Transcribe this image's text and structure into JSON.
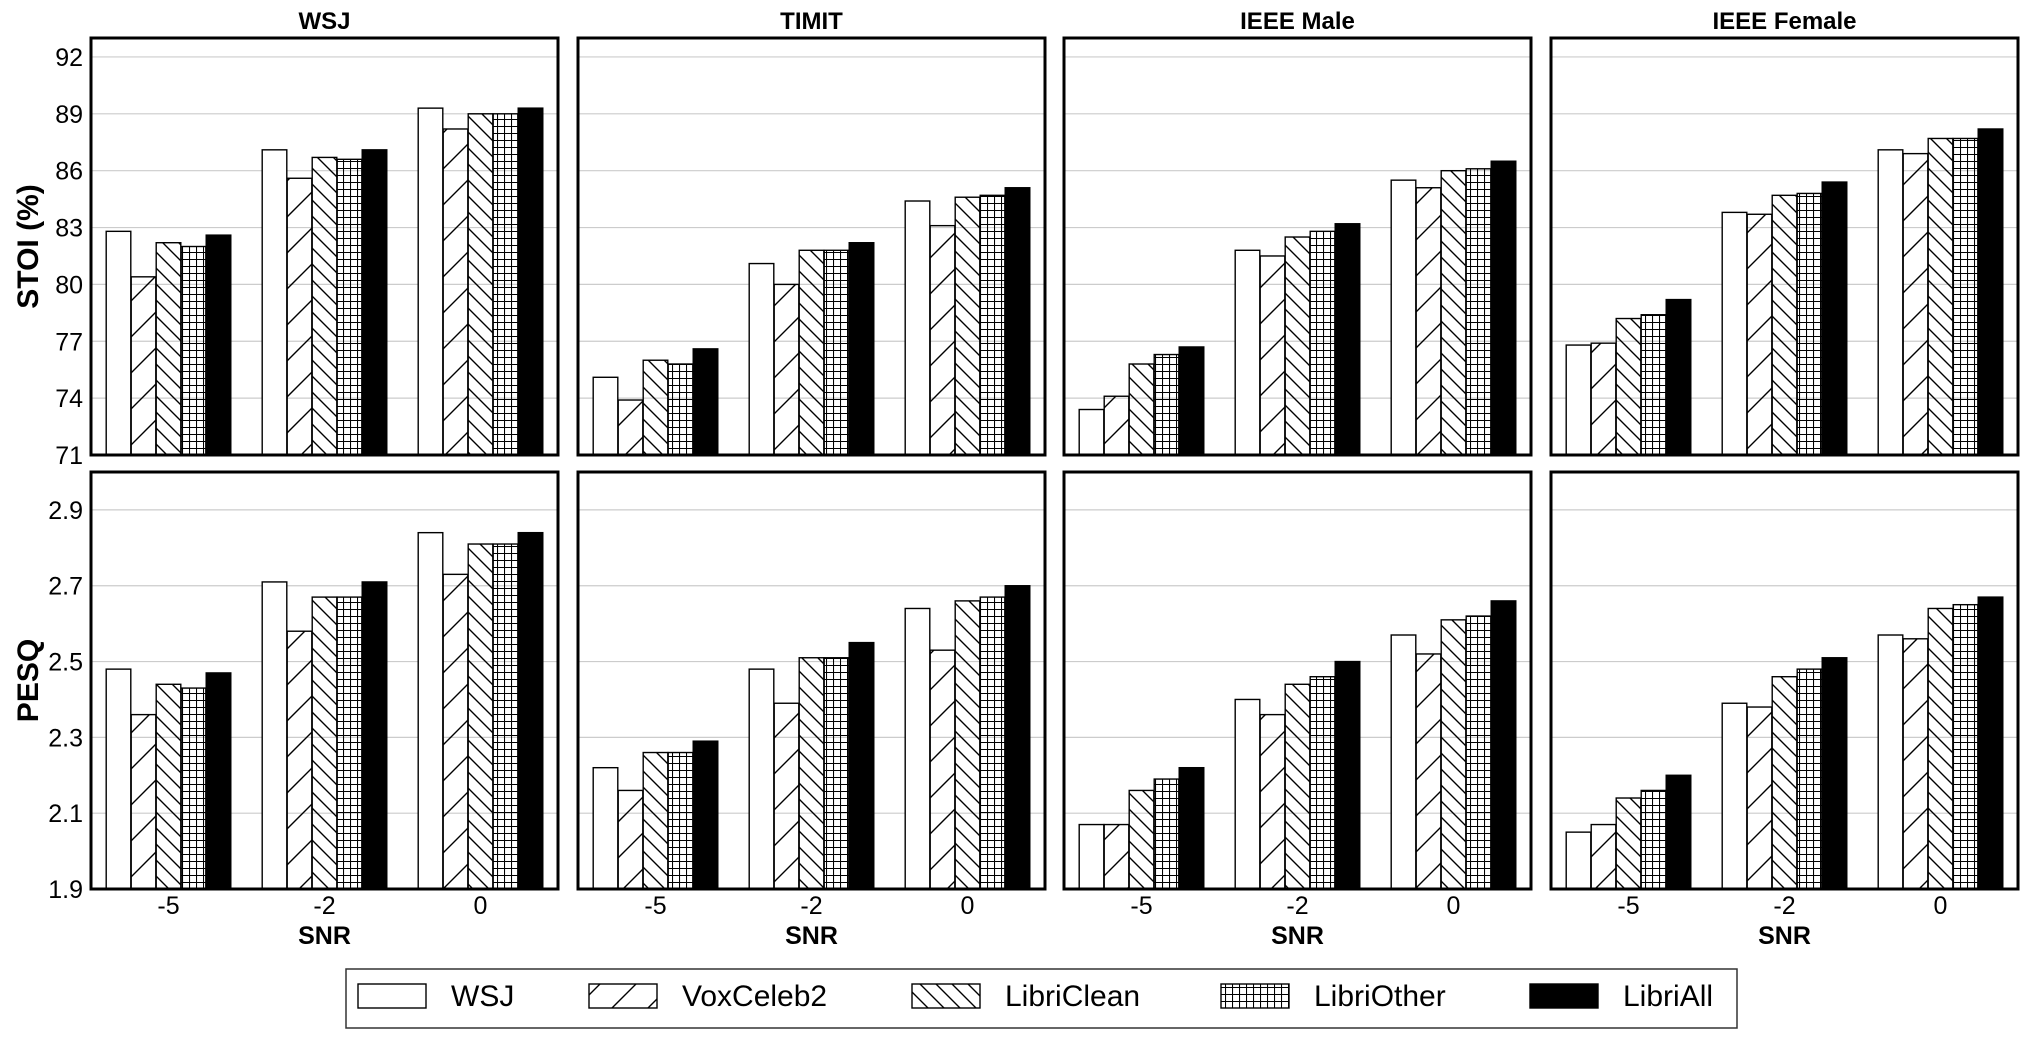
{
  "chart_data": {
    "type": "bar",
    "grid_layout": "2 rows x 4 columns",
    "columns": [
      "WSJ",
      "TIMIT",
      "IEEE Male",
      "IEEE Female"
    ],
    "xlabel": "SNR",
    "categories": [
      "-5",
      "-2",
      "0"
    ],
    "series_names": [
      "WSJ",
      "VoxCeleb2",
      "LibriClean",
      "LibriOther",
      "LibriAll"
    ],
    "series_patterns": [
      "empty",
      "forward-hatch",
      "back-hatch",
      "grid",
      "solid"
    ],
    "legend_placement": "bottom-center",
    "grid": "horizontal",
    "rows": [
      {
        "ylabel": "STOI (%)",
        "ylim": [
          71,
          93
        ],
        "yticks": [
          "71",
          "74",
          "77",
          "80",
          "83",
          "86",
          "89",
          "92"
        ],
        "panels": [
          {
            "title": "WSJ",
            "series": [
              {
                "name": "WSJ",
                "values": [
                  82.8,
                  87.1,
                  89.3
                ]
              },
              {
                "name": "VoxCeleb2",
                "values": [
                  80.4,
                  85.6,
                  88.2
                ]
              },
              {
                "name": "LibriClean",
                "values": [
                  82.2,
                  86.7,
                  89.0
                ]
              },
              {
                "name": "LibriOther",
                "values": [
                  82.0,
                  86.6,
                  89.0
                ]
              },
              {
                "name": "LibriAll",
                "values": [
                  82.6,
                  87.1,
                  89.3
                ]
              }
            ]
          },
          {
            "title": "TIMIT",
            "series": [
              {
                "name": "WSJ",
                "values": [
                  75.1,
                  81.1,
                  84.4
                ]
              },
              {
                "name": "VoxCeleb2",
                "values": [
                  73.9,
                  80.0,
                  83.1
                ]
              },
              {
                "name": "LibriClean",
                "values": [
                  76.0,
                  81.8,
                  84.6
                ]
              },
              {
                "name": "LibriOther",
                "values": [
                  75.8,
                  81.8,
                  84.7
                ]
              },
              {
                "name": "LibriAll",
                "values": [
                  76.6,
                  82.2,
                  85.1
                ]
              }
            ]
          },
          {
            "title": "IEEE Male",
            "series": [
              {
                "name": "WSJ",
                "values": [
                  73.4,
                  81.8,
                  85.5
                ]
              },
              {
                "name": "VoxCeleb2",
                "values": [
                  74.1,
                  81.5,
                  85.1
                ]
              },
              {
                "name": "LibriClean",
                "values": [
                  75.8,
                  82.5,
                  86.0
                ]
              },
              {
                "name": "LibriOther",
                "values": [
                  76.3,
                  82.8,
                  86.1
                ]
              },
              {
                "name": "LibriAll",
                "values": [
                  76.7,
                  83.2,
                  86.5
                ]
              }
            ]
          },
          {
            "title": "IEEE Female",
            "series": [
              {
                "name": "WSJ",
                "values": [
                  76.8,
                  83.8,
                  87.1
                ]
              },
              {
                "name": "VoxCeleb2",
                "values": [
                  76.9,
                  83.7,
                  86.9
                ]
              },
              {
                "name": "LibriClean",
                "values": [
                  78.2,
                  84.7,
                  87.7
                ]
              },
              {
                "name": "LibriOther",
                "values": [
                  78.4,
                  84.8,
                  87.7
                ]
              },
              {
                "name": "LibriAll",
                "values": [
                  79.2,
                  85.4,
                  88.2
                ]
              }
            ]
          }
        ]
      },
      {
        "ylabel": "PESQ",
        "ylim": [
          1.9,
          3.0
        ],
        "yticks": [
          "1.9",
          "2.1",
          "2.3",
          "2.5",
          "2.7",
          "2.9"
        ],
        "panels": [
          {
            "title": "WSJ",
            "series": [
              {
                "name": "WSJ",
                "values": [
                  2.48,
                  2.71,
                  2.84
                ]
              },
              {
                "name": "VoxCeleb2",
                "values": [
                  2.36,
                  2.58,
                  2.73
                ]
              },
              {
                "name": "LibriClean",
                "values": [
                  2.44,
                  2.67,
                  2.81
                ]
              },
              {
                "name": "LibriOther",
                "values": [
                  2.43,
                  2.67,
                  2.81
                ]
              },
              {
                "name": "LibriAll",
                "values": [
                  2.47,
                  2.71,
                  2.84
                ]
              }
            ]
          },
          {
            "title": "TIMIT",
            "series": [
              {
                "name": "WSJ",
                "values": [
                  2.22,
                  2.48,
                  2.64
                ]
              },
              {
                "name": "VoxCeleb2",
                "values": [
                  2.16,
                  2.39,
                  2.53
                ]
              },
              {
                "name": "LibriClean",
                "values": [
                  2.26,
                  2.51,
                  2.66
                ]
              },
              {
                "name": "LibriOther",
                "values": [
                  2.26,
                  2.51,
                  2.67
                ]
              },
              {
                "name": "LibriAll",
                "values": [
                  2.29,
                  2.55,
                  2.7
                ]
              }
            ]
          },
          {
            "title": "IEEE Male",
            "series": [
              {
                "name": "WSJ",
                "values": [
                  2.07,
                  2.4,
                  2.57
                ]
              },
              {
                "name": "VoxCeleb2",
                "values": [
                  2.07,
                  2.36,
                  2.52
                ]
              },
              {
                "name": "LibriClean",
                "values": [
                  2.16,
                  2.44,
                  2.61
                ]
              },
              {
                "name": "LibriOther",
                "values": [
                  2.19,
                  2.46,
                  2.62
                ]
              },
              {
                "name": "LibriAll",
                "values": [
                  2.22,
                  2.5,
                  2.66
                ]
              }
            ]
          },
          {
            "title": "IEEE Female",
            "series": [
              {
                "name": "WSJ",
                "values": [
                  2.05,
                  2.39,
                  2.57
                ]
              },
              {
                "name": "VoxCeleb2",
                "values": [
                  2.07,
                  2.38,
                  2.56
                ]
              },
              {
                "name": "LibriClean",
                "values": [
                  2.14,
                  2.46,
                  2.64
                ]
              },
              {
                "name": "LibriOther",
                "values": [
                  2.16,
                  2.48,
                  2.65
                ]
              },
              {
                "name": "LibriAll",
                "values": [
                  2.2,
                  2.51,
                  2.67
                ]
              }
            ]
          }
        ]
      }
    ]
  }
}
